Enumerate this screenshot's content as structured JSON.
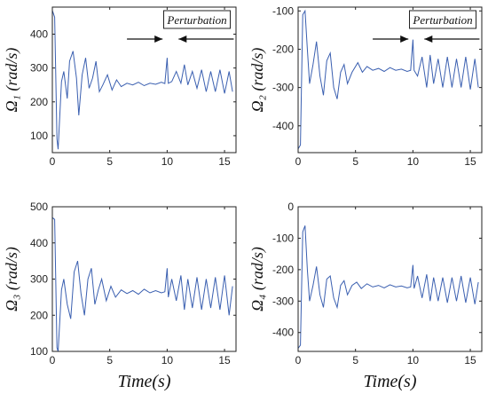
{
  "chart_data": [
    {
      "type": "line",
      "ylabel": "Ω₁ (rad/s)",
      "xlabel": "",
      "xlim": [
        0,
        16
      ],
      "ylim": [
        50,
        480
      ],
      "xticks": [
        0,
        5,
        10,
        15
      ],
      "yticks": [
        100,
        200,
        300,
        400
      ],
      "series": [
        {
          "values": [
            [
              0,
              470
            ],
            [
              0.2,
              450
            ],
            [
              0.4,
              90
            ],
            [
              0.5,
              60
            ],
            [
              0.8,
              260
            ],
            [
              1,
              290
            ],
            [
              1.3,
              210
            ],
            [
              1.5,
              320
            ],
            [
              1.8,
              350
            ],
            [
              2.1,
              270
            ],
            [
              2.3,
              160
            ],
            [
              2.6,
              280
            ],
            [
              2.9,
              330
            ],
            [
              3.2,
              240
            ],
            [
              3.5,
              270
            ],
            [
              3.8,
              320
            ],
            [
              4.1,
              230
            ],
            [
              4.4,
              250
            ],
            [
              4.8,
              280
            ],
            [
              5.2,
              235
            ],
            [
              5.6,
              265
            ],
            [
              6,
              245
            ],
            [
              6.5,
              255
            ],
            [
              7,
              250
            ],
            [
              7.5,
              258
            ],
            [
              8,
              248
            ],
            [
              8.5,
              255
            ],
            [
              9,
              252
            ],
            [
              9.5,
              258
            ],
            [
              9.8,
              254
            ],
            [
              10,
              330
            ],
            [
              10.1,
              255
            ],
            [
              10.4,
              260
            ],
            [
              10.8,
              290
            ],
            [
              11.2,
              255
            ],
            [
              11.5,
              310
            ],
            [
              11.8,
              250
            ],
            [
              12.2,
              290
            ],
            [
              12.6,
              240
            ],
            [
              13,
              295
            ],
            [
              13.4,
              230
            ],
            [
              13.8,
              290
            ],
            [
              14.2,
              230
            ],
            [
              14.6,
              295
            ],
            [
              15,
              225
            ],
            [
              15.4,
              290
            ],
            [
              15.7,
              230
            ]
          ]
        }
      ],
      "annotation": {
        "text": "Perturbation"
      }
    },
    {
      "type": "line",
      "ylabel": "Ω₂ (rad/s)",
      "xlabel": "",
      "xlim": [
        0,
        16
      ],
      "ylim": [
        -470,
        -90
      ],
      "xticks": [
        0,
        5,
        10,
        15
      ],
      "yticks": [
        -100,
        -200,
        -300,
        -400
      ],
      "series": [
        {
          "values": [
            [
              0,
              -460
            ],
            [
              0.2,
              -450
            ],
            [
              0.4,
              -110
            ],
            [
              0.6,
              -100
            ],
            [
              0.8,
              -200
            ],
            [
              1,
              -290
            ],
            [
              1.3,
              -240
            ],
            [
              1.6,
              -180
            ],
            [
              1.9,
              -270
            ],
            [
              2.2,
              -320
            ],
            [
              2.5,
              -230
            ],
            [
              2.8,
              -210
            ],
            [
              3.1,
              -300
            ],
            [
              3.4,
              -330
            ],
            [
              3.7,
              -260
            ],
            [
              4,
              -240
            ],
            [
              4.3,
              -290
            ],
            [
              4.7,
              -260
            ],
            [
              5.2,
              -235
            ],
            [
              5.6,
              -260
            ],
            [
              6,
              -245
            ],
            [
              6.5,
              -255
            ],
            [
              7,
              -250
            ],
            [
              7.5,
              -258
            ],
            [
              8,
              -248
            ],
            [
              8.5,
              -255
            ],
            [
              9,
              -252
            ],
            [
              9.5,
              -258
            ],
            [
              9.8,
              -255
            ],
            [
              10,
              -175
            ],
            [
              10.1,
              -255
            ],
            [
              10.4,
              -270
            ],
            [
              10.8,
              -220
            ],
            [
              11.2,
              -300
            ],
            [
              11.5,
              -215
            ],
            [
              11.8,
              -290
            ],
            [
              12.2,
              -225
            ],
            [
              12.6,
              -300
            ],
            [
              13,
              -220
            ],
            [
              13.4,
              -300
            ],
            [
              13.8,
              -225
            ],
            [
              14.2,
              -300
            ],
            [
              14.6,
              -220
            ],
            [
              15,
              -305
            ],
            [
              15.4,
              -225
            ],
            [
              15.7,
              -300
            ]
          ]
        }
      ],
      "annotation": {
        "text": "Perturbation"
      }
    },
    {
      "type": "line",
      "ylabel": "Ω₃ (rad/s)",
      "xlabel": "Time(s)",
      "xlim": [
        0,
        16
      ],
      "ylim": [
        100,
        500
      ],
      "xticks": [
        0,
        5,
        10,
        15
      ],
      "yticks": [
        100,
        200,
        300,
        400,
        500
      ],
      "series": [
        {
          "values": [
            [
              0,
              470
            ],
            [
              0.2,
              465
            ],
            [
              0.4,
              110
            ],
            [
              0.5,
              100
            ],
            [
              0.8,
              270
            ],
            [
              1,
              300
            ],
            [
              1.3,
              230
            ],
            [
              1.6,
              190
            ],
            [
              1.9,
              320
            ],
            [
              2.2,
              350
            ],
            [
              2.5,
              260
            ],
            [
              2.8,
              200
            ],
            [
              3.1,
              300
            ],
            [
              3.4,
              330
            ],
            [
              3.7,
              230
            ],
            [
              4,
              270
            ],
            [
              4.3,
              300
            ],
            [
              4.7,
              240
            ],
            [
              5.1,
              280
            ],
            [
              5.5,
              250
            ],
            [
              6,
              270
            ],
            [
              6.5,
              260
            ],
            [
              7,
              268
            ],
            [
              7.5,
              258
            ],
            [
              8,
              272
            ],
            [
              8.5,
              262
            ],
            [
              9,
              268
            ],
            [
              9.5,
              262
            ],
            [
              9.8,
              265
            ],
            [
              10,
              330
            ],
            [
              10.1,
              250
            ],
            [
              10.4,
              300
            ],
            [
              10.8,
              240
            ],
            [
              11.2,
              310
            ],
            [
              11.5,
              215
            ],
            [
              11.8,
              300
            ],
            [
              12.2,
              220
            ],
            [
              12.6,
              305
            ],
            [
              13,
              215
            ],
            [
              13.4,
              300
            ],
            [
              13.8,
              220
            ],
            [
              14.2,
              305
            ],
            [
              14.6,
              215
            ],
            [
              15,
              310
            ],
            [
              15.4,
              200
            ],
            [
              15.7,
              280
            ]
          ]
        }
      ]
    },
    {
      "type": "line",
      "ylabel": "Ω₄ (rad/s)",
      "xlabel": "Time(s)",
      "xlim": [
        0,
        16
      ],
      "ylim": [
        -460,
        0
      ],
      "xticks": [
        0,
        5,
        10,
        15
      ],
      "yticks": [
        0,
        -100,
        -200,
        -300,
        -400
      ],
      "series": [
        {
          "values": [
            [
              0,
              -450
            ],
            [
              0.2,
              -440
            ],
            [
              0.4,
              -80
            ],
            [
              0.6,
              -60
            ],
            [
              0.8,
              -200
            ],
            [
              1,
              -300
            ],
            [
              1.3,
              -250
            ],
            [
              1.6,
              -190
            ],
            [
              1.9,
              -280
            ],
            [
              2.2,
              -320
            ],
            [
              2.5,
              -230
            ],
            [
              2.8,
              -220
            ],
            [
              3.1,
              -290
            ],
            [
              3.4,
              -320
            ],
            [
              3.7,
              -250
            ],
            [
              4,
              -235
            ],
            [
              4.3,
              -280
            ],
            [
              4.7,
              -250
            ],
            [
              5.1,
              -240
            ],
            [
              5.5,
              -260
            ],
            [
              6,
              -245
            ],
            [
              6.5,
              -255
            ],
            [
              7,
              -250
            ],
            [
              7.5,
              -258
            ],
            [
              8,
              -248
            ],
            [
              8.5,
              -255
            ],
            [
              9,
              -252
            ],
            [
              9.5,
              -258
            ],
            [
              9.8,
              -255
            ],
            [
              10,
              -185
            ],
            [
              10.1,
              -260
            ],
            [
              10.4,
              -220
            ],
            [
              10.8,
              -290
            ],
            [
              11.2,
              -215
            ],
            [
              11.5,
              -300
            ],
            [
              11.8,
              -225
            ],
            [
              12.2,
              -300
            ],
            [
              12.6,
              -225
            ],
            [
              13,
              -305
            ],
            [
              13.4,
              -225
            ],
            [
              13.8,
              -300
            ],
            [
              14.2,
              -220
            ],
            [
              14.6,
              -305
            ],
            [
              15,
              -225
            ],
            [
              15.4,
              -310
            ],
            [
              15.7,
              -240
            ]
          ]
        }
      ]
    }
  ],
  "colors": {
    "series": "#3a5fb0",
    "axes": "#222222"
  }
}
